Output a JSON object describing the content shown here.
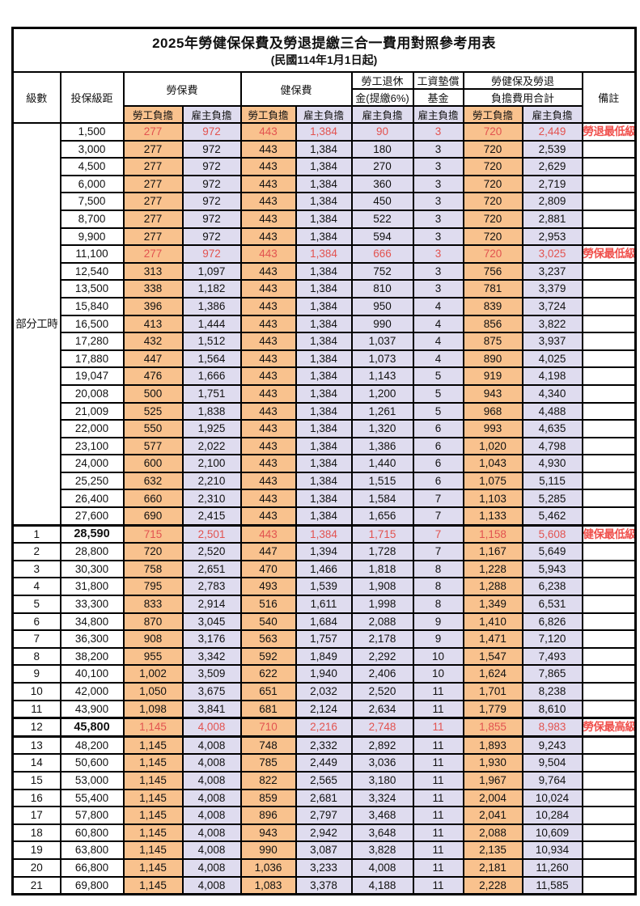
{
  "title": "2025年勞健保保費及勞退提繳三合一費用對照參考用表",
  "subtitle": "(民國114年1月1日起)",
  "columns": {
    "level": "級數",
    "bracket": "投保級距",
    "labor_insurance": "勞保費",
    "health_insurance": "健保費",
    "pension_line1": "勞工退休",
    "pension_line2": "金(提繳6%)",
    "wage_fund_line1": "工資墊償",
    "wage_fund_line2": "基金",
    "total_line1": "勞健保及勞退",
    "total_line2": "負擔費用合計",
    "remarks": "備註",
    "employee_share": "勞工負擔",
    "employer_share": "雇主負擔"
  },
  "part_time_label": "部分工時",
  "colors": {
    "employee_column_bg": "#f9c28e",
    "employer_column_bg": "#dfdcef",
    "highlight_value_red": "#e25350",
    "remark_red": "#f0504c",
    "border_black": "#000000"
  },
  "rows": [
    {
      "level": "",
      "bracket": "1,500",
      "li_e": "277",
      "li_r": "972",
      "hi_e": "443",
      "hi_r": "1,384",
      "pen": "90",
      "fund": "3",
      "sum_e": "720",
      "sum_r": "2,449",
      "remark": "勞退最低級距",
      "red": true,
      "bold": false,
      "thick": false
    },
    {
      "level": "",
      "bracket": "3,000",
      "li_e": "277",
      "li_r": "972",
      "hi_e": "443",
      "hi_r": "1,384",
      "pen": "180",
      "fund": "3",
      "sum_e": "720",
      "sum_r": "2,539",
      "remark": "",
      "red": false,
      "bold": false,
      "thick": false
    },
    {
      "level": "",
      "bracket": "4,500",
      "li_e": "277",
      "li_r": "972",
      "hi_e": "443",
      "hi_r": "1,384",
      "pen": "270",
      "fund": "3",
      "sum_e": "720",
      "sum_r": "2,629",
      "remark": "",
      "red": false,
      "bold": false,
      "thick": false
    },
    {
      "level": "",
      "bracket": "6,000",
      "li_e": "277",
      "li_r": "972",
      "hi_e": "443",
      "hi_r": "1,384",
      "pen": "360",
      "fund": "3",
      "sum_e": "720",
      "sum_r": "2,719",
      "remark": "",
      "red": false,
      "bold": false,
      "thick": false
    },
    {
      "level": "",
      "bracket": "7,500",
      "li_e": "277",
      "li_r": "972",
      "hi_e": "443",
      "hi_r": "1,384",
      "pen": "450",
      "fund": "3",
      "sum_e": "720",
      "sum_r": "2,809",
      "remark": "",
      "red": false,
      "bold": false,
      "thick": false
    },
    {
      "level": "",
      "bracket": "8,700",
      "li_e": "277",
      "li_r": "972",
      "hi_e": "443",
      "hi_r": "1,384",
      "pen": "522",
      "fund": "3",
      "sum_e": "720",
      "sum_r": "2,881",
      "remark": "",
      "red": false,
      "bold": false,
      "thick": false
    },
    {
      "level": "",
      "bracket": "9,900",
      "li_e": "277",
      "li_r": "972",
      "hi_e": "443",
      "hi_r": "1,384",
      "pen": "594",
      "fund": "3",
      "sum_e": "720",
      "sum_r": "2,953",
      "remark": "",
      "red": false,
      "bold": false,
      "thick": false
    },
    {
      "level": "",
      "bracket": "11,100",
      "li_e": "277",
      "li_r": "972",
      "hi_e": "443",
      "hi_r": "1,384",
      "pen": "666",
      "fund": "3",
      "sum_e": "720",
      "sum_r": "3,025",
      "remark": "勞保最低級距",
      "red": true,
      "bold": false,
      "thick": false
    },
    {
      "level": "",
      "bracket": "12,540",
      "li_e": "313",
      "li_r": "1,097",
      "hi_e": "443",
      "hi_r": "1,384",
      "pen": "752",
      "fund": "3",
      "sum_e": "756",
      "sum_r": "3,237",
      "remark": "",
      "red": false,
      "bold": false,
      "thick": false
    },
    {
      "level": "",
      "bracket": "13,500",
      "li_e": "338",
      "li_r": "1,182",
      "hi_e": "443",
      "hi_r": "1,384",
      "pen": "810",
      "fund": "3",
      "sum_e": "781",
      "sum_r": "3,379",
      "remark": "",
      "red": false,
      "bold": false,
      "thick": false
    },
    {
      "level": "",
      "bracket": "15,840",
      "li_e": "396",
      "li_r": "1,386",
      "hi_e": "443",
      "hi_r": "1,384",
      "pen": "950",
      "fund": "4",
      "sum_e": "839",
      "sum_r": "3,724",
      "remark": "",
      "red": false,
      "bold": false,
      "thick": false
    },
    {
      "level": "",
      "bracket": "16,500",
      "li_e": "413",
      "li_r": "1,444",
      "hi_e": "443",
      "hi_r": "1,384",
      "pen": "990",
      "fund": "4",
      "sum_e": "856",
      "sum_r": "3,822",
      "remark": "",
      "red": false,
      "bold": false,
      "thick": false
    },
    {
      "level": "",
      "bracket": "17,280",
      "li_e": "432",
      "li_r": "1,512",
      "hi_e": "443",
      "hi_r": "1,384",
      "pen": "1,037",
      "fund": "4",
      "sum_e": "875",
      "sum_r": "3,937",
      "remark": "",
      "red": false,
      "bold": false,
      "thick": false
    },
    {
      "level": "",
      "bracket": "17,880",
      "li_e": "447",
      "li_r": "1,564",
      "hi_e": "443",
      "hi_r": "1,384",
      "pen": "1,073",
      "fund": "4",
      "sum_e": "890",
      "sum_r": "4,025",
      "remark": "",
      "red": false,
      "bold": false,
      "thick": false
    },
    {
      "level": "",
      "bracket": "19,047",
      "li_e": "476",
      "li_r": "1,666",
      "hi_e": "443",
      "hi_r": "1,384",
      "pen": "1,143",
      "fund": "5",
      "sum_e": "919",
      "sum_r": "4,198",
      "remark": "",
      "red": false,
      "bold": false,
      "thick": false
    },
    {
      "level": "",
      "bracket": "20,008",
      "li_e": "500",
      "li_r": "1,751",
      "hi_e": "443",
      "hi_r": "1,384",
      "pen": "1,200",
      "fund": "5",
      "sum_e": "943",
      "sum_r": "4,340",
      "remark": "",
      "red": false,
      "bold": false,
      "thick": false
    },
    {
      "level": "",
      "bracket": "21,009",
      "li_e": "525",
      "li_r": "1,838",
      "hi_e": "443",
      "hi_r": "1,384",
      "pen": "1,261",
      "fund": "5",
      "sum_e": "968",
      "sum_r": "4,488",
      "remark": "",
      "red": false,
      "bold": false,
      "thick": false
    },
    {
      "level": "",
      "bracket": "22,000",
      "li_e": "550",
      "li_r": "1,925",
      "hi_e": "443",
      "hi_r": "1,384",
      "pen": "1,320",
      "fund": "6",
      "sum_e": "993",
      "sum_r": "4,635",
      "remark": "",
      "red": false,
      "bold": false,
      "thick": false
    },
    {
      "level": "",
      "bracket": "23,100",
      "li_e": "577",
      "li_r": "2,022",
      "hi_e": "443",
      "hi_r": "1,384",
      "pen": "1,386",
      "fund": "6",
      "sum_e": "1,020",
      "sum_r": "4,798",
      "remark": "",
      "red": false,
      "bold": false,
      "thick": false
    },
    {
      "level": "",
      "bracket": "24,000",
      "li_e": "600",
      "li_r": "2,100",
      "hi_e": "443",
      "hi_r": "1,384",
      "pen": "1,440",
      "fund": "6",
      "sum_e": "1,043",
      "sum_r": "4,930",
      "remark": "",
      "red": false,
      "bold": false,
      "thick": false
    },
    {
      "level": "",
      "bracket": "25,250",
      "li_e": "632",
      "li_r": "2,210",
      "hi_e": "443",
      "hi_r": "1,384",
      "pen": "1,515",
      "fund": "6",
      "sum_e": "1,075",
      "sum_r": "5,115",
      "remark": "",
      "red": false,
      "bold": false,
      "thick": false
    },
    {
      "level": "",
      "bracket": "26,400",
      "li_e": "660",
      "li_r": "2,310",
      "hi_e": "443",
      "hi_r": "1,384",
      "pen": "1,584",
      "fund": "7",
      "sum_e": "1,103",
      "sum_r": "5,285",
      "remark": "",
      "red": false,
      "bold": false,
      "thick": false
    },
    {
      "level": "",
      "bracket": "27,600",
      "li_e": "690",
      "li_r": "2,415",
      "hi_e": "443",
      "hi_r": "1,384",
      "pen": "1,656",
      "fund": "7",
      "sum_e": "1,133",
      "sum_r": "5,462",
      "remark": "",
      "red": false,
      "bold": false,
      "thick": false
    },
    {
      "level": "1",
      "bracket": "28,590",
      "li_e": "715",
      "li_r": "2,501",
      "hi_e": "443",
      "hi_r": "1,384",
      "pen": "1,715",
      "fund": "7",
      "sum_e": "1,158",
      "sum_r": "5,608",
      "remark": "健保最低級距",
      "red": true,
      "bold": true,
      "thick": true
    },
    {
      "level": "2",
      "bracket": "28,800",
      "li_e": "720",
      "li_r": "2,520",
      "hi_e": "447",
      "hi_r": "1,394",
      "pen": "1,728",
      "fund": "7",
      "sum_e": "1,167",
      "sum_r": "5,649",
      "remark": "",
      "red": false,
      "bold": false,
      "thick": false
    },
    {
      "level": "3",
      "bracket": "30,300",
      "li_e": "758",
      "li_r": "2,651",
      "hi_e": "470",
      "hi_r": "1,466",
      "pen": "1,818",
      "fund": "8",
      "sum_e": "1,228",
      "sum_r": "5,943",
      "remark": "",
      "red": false,
      "bold": false,
      "thick": false
    },
    {
      "level": "4",
      "bracket": "31,800",
      "li_e": "795",
      "li_r": "2,783",
      "hi_e": "493",
      "hi_r": "1,539",
      "pen": "1,908",
      "fund": "8",
      "sum_e": "1,288",
      "sum_r": "6,238",
      "remark": "",
      "red": false,
      "bold": false,
      "thick": false
    },
    {
      "level": "5",
      "bracket": "33,300",
      "li_e": "833",
      "li_r": "2,914",
      "hi_e": "516",
      "hi_r": "1,611",
      "pen": "1,998",
      "fund": "8",
      "sum_e": "1,349",
      "sum_r": "6,531",
      "remark": "",
      "red": false,
      "bold": false,
      "thick": false
    },
    {
      "level": "6",
      "bracket": "34,800",
      "li_e": "870",
      "li_r": "3,045",
      "hi_e": "540",
      "hi_r": "1,684",
      "pen": "2,088",
      "fund": "9",
      "sum_e": "1,410",
      "sum_r": "6,826",
      "remark": "",
      "red": false,
      "bold": false,
      "thick": false
    },
    {
      "level": "7",
      "bracket": "36,300",
      "li_e": "908",
      "li_r": "3,176",
      "hi_e": "563",
      "hi_r": "1,757",
      "pen": "2,178",
      "fund": "9",
      "sum_e": "1,471",
      "sum_r": "7,120",
      "remark": "",
      "red": false,
      "bold": false,
      "thick": false
    },
    {
      "level": "8",
      "bracket": "38,200",
      "li_e": "955",
      "li_r": "3,342",
      "hi_e": "592",
      "hi_r": "1,849",
      "pen": "2,292",
      "fund": "10",
      "sum_e": "1,547",
      "sum_r": "7,493",
      "remark": "",
      "red": false,
      "bold": false,
      "thick": false
    },
    {
      "level": "9",
      "bracket": "40,100",
      "li_e": "1,002",
      "li_r": "3,509",
      "hi_e": "622",
      "hi_r": "1,940",
      "pen": "2,406",
      "fund": "10",
      "sum_e": "1,624",
      "sum_r": "7,865",
      "remark": "",
      "red": false,
      "bold": false,
      "thick": false
    },
    {
      "level": "10",
      "bracket": "42,000",
      "li_e": "1,050",
      "li_r": "3,675",
      "hi_e": "651",
      "hi_r": "2,032",
      "pen": "2,520",
      "fund": "11",
      "sum_e": "1,701",
      "sum_r": "8,238",
      "remark": "",
      "red": false,
      "bold": false,
      "thick": false
    },
    {
      "level": "11",
      "bracket": "43,900",
      "li_e": "1,098",
      "li_r": "3,841",
      "hi_e": "681",
      "hi_r": "2,124",
      "pen": "2,634",
      "fund": "11",
      "sum_e": "1,779",
      "sum_r": "8,610",
      "remark": "",
      "red": false,
      "bold": false,
      "thick": false
    },
    {
      "level": "12",
      "bracket": "45,800",
      "li_e": "1,145",
      "li_r": "4,008",
      "hi_e": "710",
      "hi_r": "2,216",
      "pen": "2,748",
      "fund": "11",
      "sum_e": "1,855",
      "sum_r": "8,983",
      "remark": "勞保最高級距",
      "red": true,
      "bold": true,
      "thick": true
    },
    {
      "level": "13",
      "bracket": "48,200",
      "li_e": "1,145",
      "li_r": "4,008",
      "hi_e": "748",
      "hi_r": "2,332",
      "pen": "2,892",
      "fund": "11",
      "sum_e": "1,893",
      "sum_r": "9,243",
      "remark": "",
      "red": false,
      "bold": false,
      "thick": true
    },
    {
      "level": "14",
      "bracket": "50,600",
      "li_e": "1,145",
      "li_r": "4,008",
      "hi_e": "785",
      "hi_r": "2,449",
      "pen": "3,036",
      "fund": "11",
      "sum_e": "1,930",
      "sum_r": "9,504",
      "remark": "",
      "red": false,
      "bold": false,
      "thick": false
    },
    {
      "level": "15",
      "bracket": "53,000",
      "li_e": "1,145",
      "li_r": "4,008",
      "hi_e": "822",
      "hi_r": "2,565",
      "pen": "3,180",
      "fund": "11",
      "sum_e": "1,967",
      "sum_r": "9,764",
      "remark": "",
      "red": false,
      "bold": false,
      "thick": false
    },
    {
      "level": "16",
      "bracket": "55,400",
      "li_e": "1,145",
      "li_r": "4,008",
      "hi_e": "859",
      "hi_r": "2,681",
      "pen": "3,324",
      "fund": "11",
      "sum_e": "2,004",
      "sum_r": "10,024",
      "remark": "",
      "red": false,
      "bold": false,
      "thick": false
    },
    {
      "level": "17",
      "bracket": "57,800",
      "li_e": "1,145",
      "li_r": "4,008",
      "hi_e": "896",
      "hi_r": "2,797",
      "pen": "3,468",
      "fund": "11",
      "sum_e": "2,041",
      "sum_r": "10,284",
      "remark": "",
      "red": false,
      "bold": false,
      "thick": false
    },
    {
      "level": "18",
      "bracket": "60,800",
      "li_e": "1,145",
      "li_r": "4,008",
      "hi_e": "943",
      "hi_r": "2,942",
      "pen": "3,648",
      "fund": "11",
      "sum_e": "2,088",
      "sum_r": "10,609",
      "remark": "",
      "red": false,
      "bold": false,
      "thick": false
    },
    {
      "level": "19",
      "bracket": "63,800",
      "li_e": "1,145",
      "li_r": "4,008",
      "hi_e": "990",
      "hi_r": "3,087",
      "pen": "3,828",
      "fund": "11",
      "sum_e": "2,135",
      "sum_r": "10,934",
      "remark": "",
      "red": false,
      "bold": false,
      "thick": false
    },
    {
      "level": "20",
      "bracket": "66,800",
      "li_e": "1,145",
      "li_r": "4,008",
      "hi_e": "1,036",
      "hi_r": "3,233",
      "pen": "4,008",
      "fund": "11",
      "sum_e": "2,181",
      "sum_r": "11,260",
      "remark": "",
      "red": false,
      "bold": false,
      "thick": false
    },
    {
      "level": "21",
      "bracket": "69,800",
      "li_e": "1,145",
      "li_r": "4,008",
      "hi_e": "1,083",
      "hi_r": "3,378",
      "pen": "4,188",
      "fund": "11",
      "sum_e": "2,228",
      "sum_r": "11,585",
      "remark": "",
      "red": false,
      "bold": false,
      "thick": false
    }
  ]
}
